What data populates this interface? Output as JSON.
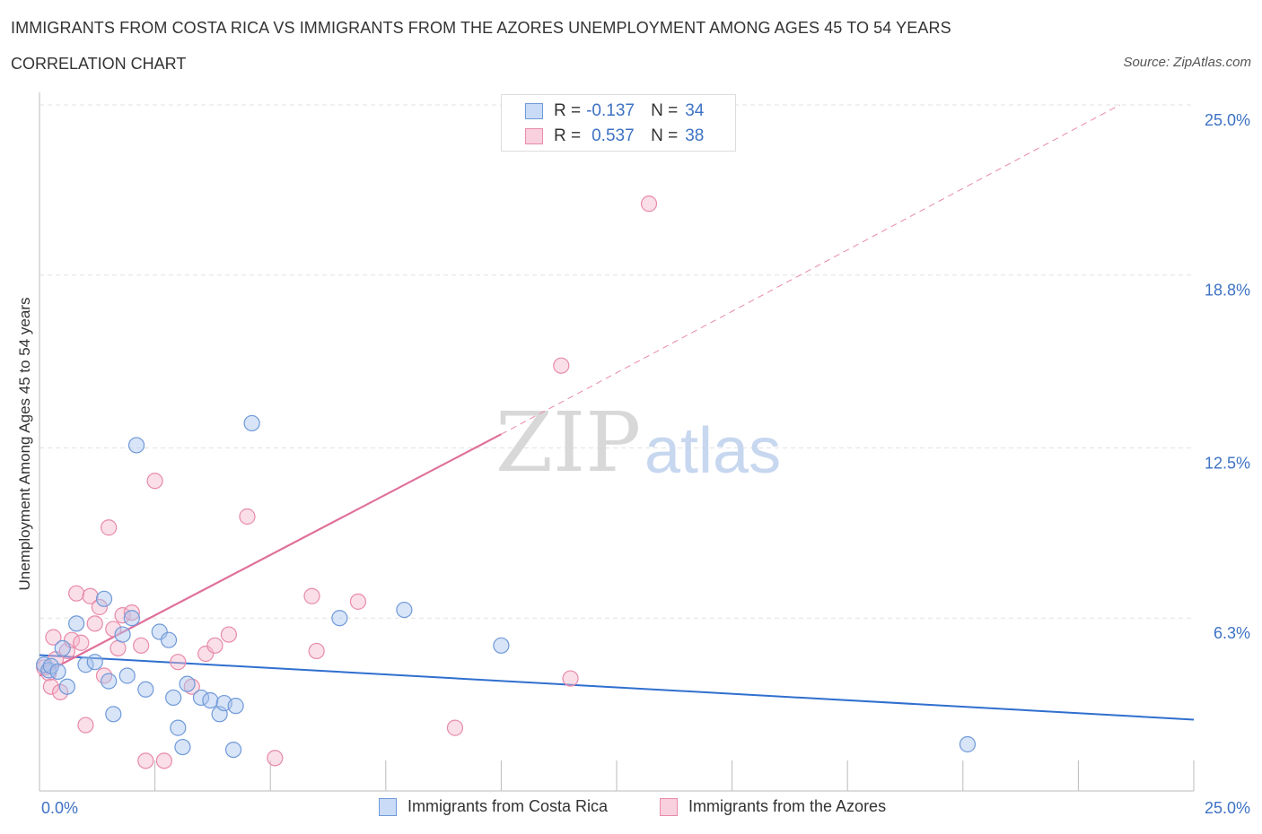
{
  "header": {
    "title": "IMMIGRANTS FROM COSTA RICA VS IMMIGRANTS FROM THE AZORES UNEMPLOYMENT AMONG AGES 45 TO 54 YEARS",
    "subtitle": "CORRELATION CHART",
    "source": "Source: ZipAtlas.com"
  },
  "watermark": {
    "zip": "ZIP",
    "atlas": "atlas"
  },
  "legend": {
    "rows": [
      {
        "r_label": "R =",
        "r_value": "-0.137",
        "n_label": "N =",
        "n_value": "34",
        "color": "#a9c4ee"
      },
      {
        "r_label": "R =",
        "r_value": "0.537",
        "n_label": "N =",
        "n_value": "38",
        "color": "#f5b7cb"
      }
    ]
  },
  "colors": {
    "blue_fill": "#a9c4ee",
    "blue_stroke": "#6f9ad9",
    "blue_line": "#2f6fcf",
    "pink_fill": "#f5b7cb",
    "pink_stroke": "#e88aa9",
    "pink_line": "#e0709a",
    "grid": "#e2e2e2",
    "tick_text": "#3d72c4"
  },
  "chart_data": {
    "type": "scatter",
    "title": "IMMIGRANTS FROM COSTA RICA VS IMMIGRANTS FROM THE AZORES UNEMPLOYMENT AMONG AGES 45 TO 54 YEARS",
    "xlabel": "",
    "ylabel": "Unemployment Among Ages 45 to 54 years",
    "xlim": [
      0,
      25
    ],
    "ylim": [
      0,
      25
    ],
    "x_tick_labels": [
      "0.0%",
      "25.0%"
    ],
    "y_ticks": [
      6.3,
      12.5,
      18.8,
      25.0
    ],
    "y_tick_labels": [
      "6.3%",
      "12.5%",
      "18.8%",
      "25.0%"
    ],
    "grid": true,
    "legend_position": "top-center",
    "series": [
      {
        "name": "Immigrants from Costa Rica",
        "color": "#a9c4ee",
        "regression": {
          "x0": 0,
          "y0": 4.95,
          "x1": 25,
          "y1": 2.6
        },
        "points": [
          [
            0.1,
            4.6
          ],
          [
            0.2,
            4.4
          ],
          [
            0.25,
            4.55
          ],
          [
            0.4,
            4.35
          ],
          [
            0.5,
            5.2
          ],
          [
            0.6,
            3.8
          ],
          [
            0.8,
            6.1
          ],
          [
            1.0,
            4.6
          ],
          [
            1.2,
            4.7
          ],
          [
            1.4,
            7.0
          ],
          [
            1.5,
            4.0
          ],
          [
            1.6,
            2.8
          ],
          [
            1.8,
            5.7
          ],
          [
            1.9,
            4.2
          ],
          [
            2.0,
            6.3
          ],
          [
            2.1,
            12.6
          ],
          [
            2.3,
            3.7
          ],
          [
            2.6,
            5.8
          ],
          [
            2.8,
            5.5
          ],
          [
            2.9,
            3.4
          ],
          [
            3.0,
            2.3
          ],
          [
            3.1,
            1.6
          ],
          [
            3.2,
            3.9
          ],
          [
            3.5,
            3.4
          ],
          [
            3.7,
            3.3
          ],
          [
            3.9,
            2.8
          ],
          [
            4.0,
            3.2
          ],
          [
            4.2,
            1.5
          ],
          [
            4.25,
            3.1
          ],
          [
            4.6,
            13.4
          ],
          [
            6.5,
            6.3
          ],
          [
            7.9,
            6.6
          ],
          [
            10.0,
            5.3
          ],
          [
            20.1,
            1.7
          ]
        ]
      },
      {
        "name": "Immigrants from the Azores",
        "color": "#f5b7cb",
        "regression": {
          "x0": 0,
          "y0": 4.2,
          "x1": 10,
          "y1": 13.0
        },
        "regression_extension": {
          "x0": 10,
          "y0": 13.0,
          "x1": 23.4,
          "y1": 25.0
        },
        "points": [
          [
            0.1,
            4.5
          ],
          [
            0.2,
            4.3
          ],
          [
            0.25,
            3.8
          ],
          [
            0.3,
            5.6
          ],
          [
            0.35,
            4.8
          ],
          [
            0.45,
            3.6
          ],
          [
            0.6,
            5.1
          ],
          [
            0.7,
            5.5
          ],
          [
            0.8,
            7.2
          ],
          [
            0.9,
            5.4
          ],
          [
            1.0,
            2.4
          ],
          [
            1.1,
            7.1
          ],
          [
            1.2,
            6.1
          ],
          [
            1.3,
            6.7
          ],
          [
            1.4,
            4.2
          ],
          [
            1.5,
            9.6
          ],
          [
            1.6,
            5.9
          ],
          [
            1.7,
            5.2
          ],
          [
            1.8,
            6.4
          ],
          [
            2.0,
            6.5
          ],
          [
            2.2,
            5.3
          ],
          [
            2.3,
            1.1
          ],
          [
            2.5,
            11.3
          ],
          [
            2.7,
            1.1
          ],
          [
            3.0,
            4.7
          ],
          [
            3.3,
            3.8
          ],
          [
            3.6,
            5.0
          ],
          [
            3.8,
            5.3
          ],
          [
            4.1,
            5.7
          ],
          [
            4.5,
            10.0
          ],
          [
            5.1,
            1.2
          ],
          [
            5.9,
            7.1
          ],
          [
            6.0,
            5.1
          ],
          [
            6.9,
            6.9
          ],
          [
            9.0,
            2.3
          ],
          [
            11.3,
            15.5
          ],
          [
            11.5,
            4.1
          ],
          [
            13.2,
            21.4
          ]
        ]
      }
    ]
  },
  "bottom_legend": {
    "blue_label": "Immigrants from Costa Rica",
    "pink_label": "Immigrants from the Azores"
  }
}
